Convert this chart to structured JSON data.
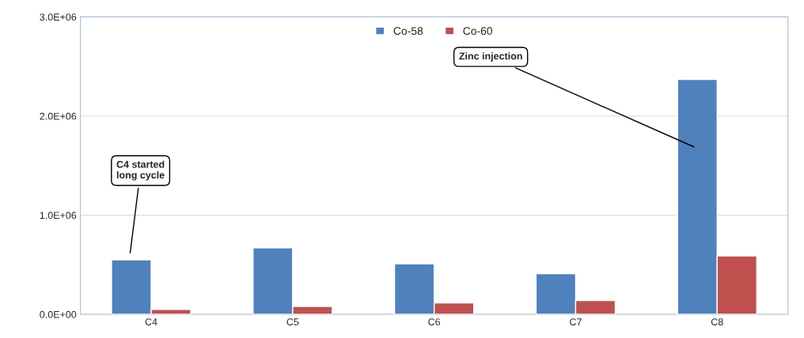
{
  "chart_data": {
    "type": "bar",
    "categories": [
      "C4",
      "C5",
      "C6",
      "C7",
      "C8"
    ],
    "series": [
      {
        "name": "Co-58",
        "color": "#4f81bd",
        "values": [
          550000,
          670000,
          510000,
          410000,
          2370000
        ]
      },
      {
        "name": "Co-60",
        "color": "#c0504d",
        "values": [
          50000,
          80000,
          115000,
          140000,
          590000
        ]
      }
    ],
    "ylim": [
      0,
      3000000
    ],
    "yticks": [
      {
        "value": 0,
        "label": "0.0E+00"
      },
      {
        "value": 1000000,
        "label": "1.0E+06"
      },
      {
        "value": 2000000,
        "label": "2.0E+06"
      },
      {
        "value": 3000000,
        "label": "3.0E+06"
      }
    ],
    "grid": "y",
    "legend": "top",
    "annotations": [
      "C4 started\nlong cycle",
      "Zinc injection"
    ]
  }
}
